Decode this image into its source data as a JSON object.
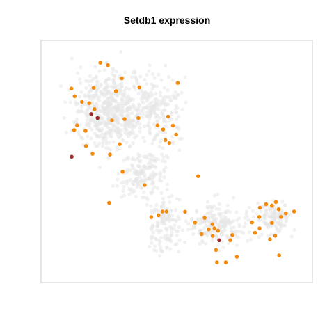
{
  "chart_data": {
    "type": "scatter",
    "title": "Setdb1 expression",
    "xlabel": "",
    "ylabel": "",
    "xlim": [
      0,
      1
    ],
    "ylim": [
      0,
      1
    ],
    "axes_visible": false,
    "grid": false,
    "legend": "none",
    "colors": {
      "background_points": "#e6e6e6",
      "medium_expression": "#f28a0d",
      "high_expression": "#992b2b",
      "frame": "#cccccc"
    },
    "series": [
      {
        "level": "medium",
        "points": [
          [
            0.194,
            0.938
          ],
          [
            0.224,
            0.927
          ],
          [
            0.279,
            0.869
          ],
          [
            0.167,
            0.827
          ],
          [
            0.256,
            0.812
          ],
          [
            0.349,
            0.829
          ],
          [
            0.501,
            0.849
          ],
          [
            0.079,
            0.824
          ],
          [
            0.092,
            0.79
          ],
          [
            0.121,
            0.765
          ],
          [
            0.15,
            0.759
          ],
          [
            0.171,
            0.733
          ],
          [
            0.24,
            0.683
          ],
          [
            0.29,
            0.689
          ],
          [
            0.345,
            0.694
          ],
          [
            0.463,
            0.7
          ],
          [
            0.421,
            0.661
          ],
          [
            0.482,
            0.66
          ],
          [
            0.443,
            0.643
          ],
          [
            0.495,
            0.62
          ],
          [
            0.102,
            0.661
          ],
          [
            0.09,
            0.64
          ],
          [
            0.135,
            0.637
          ],
          [
            0.452,
            0.596
          ],
          [
            0.468,
            0.583
          ],
          [
            0.271,
            0.578
          ],
          [
            0.137,
            0.57
          ],
          [
            0.163,
            0.535
          ],
          [
            0.232,
            0.532
          ],
          [
            0.282,
            0.456
          ],
          [
            0.37,
            0.397
          ],
          [
            0.582,
            0.436
          ],
          [
            0.229,
            0.318
          ],
          [
            0.457,
            0.28
          ],
          [
            0.441,
            0.28
          ],
          [
            0.53,
            0.279
          ],
          [
            0.425,
            0.263
          ],
          [
            0.396,
            0.255
          ],
          [
            0.57,
            0.231
          ],
          [
            0.608,
            0.252
          ],
          [
            0.639,
            0.224
          ],
          [
            0.647,
            0.206
          ],
          [
            0.624,
            0.201
          ],
          [
            0.661,
            0.195
          ],
          [
            0.596,
            0.18
          ],
          [
            0.64,
            0.172
          ],
          [
            0.718,
            0.176
          ],
          [
            0.71,
            0.153
          ],
          [
            0.653,
            0.11
          ],
          [
            0.736,
            0.08
          ],
          [
            0.692,
            0.055
          ],
          [
            0.657,
            0.055
          ],
          [
            0.852,
            0.312
          ],
          [
            0.891,
            0.322
          ],
          [
            0.875,
            0.306
          ],
          [
            0.827,
            0.297
          ],
          [
            0.902,
            0.29
          ],
          [
            0.963,
            0.28
          ],
          [
            0.93,
            0.272
          ],
          [
            0.911,
            0.256
          ],
          [
            0.825,
            0.256
          ],
          [
            0.796,
            0.232
          ],
          [
            0.875,
            0.23
          ],
          [
            0.826,
            0.206
          ],
          [
            0.808,
            0.186
          ],
          [
            0.888,
            0.173
          ],
          [
            0.867,
            0.157
          ],
          [
            0.904,
            0.086
          ]
        ]
      },
      {
        "level": "high",
        "points": [
          [
            0.158,
            0.711
          ],
          [
            0.183,
            0.694
          ],
          [
            0.08,
            0.522
          ],
          [
            0.666,
            0.153
          ]
        ]
      }
    ]
  }
}
